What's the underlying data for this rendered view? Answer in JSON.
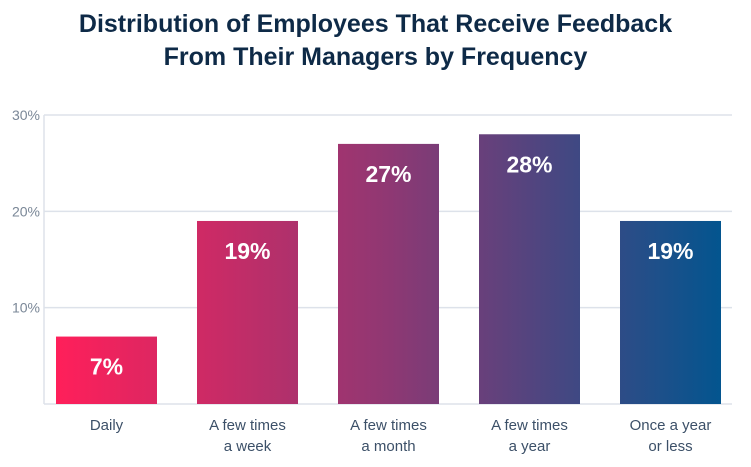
{
  "chart_data": {
    "type": "bar",
    "title_lines": [
      "Distribution of Employees That Receive Feedback",
      "From Their Managers by Frequency"
    ],
    "categories": [
      [
        "Daily"
      ],
      [
        "A few times",
        "a week"
      ],
      [
        "A few times",
        "a month"
      ],
      [
        "A few times",
        "a year"
      ],
      [
        "Once a year",
        "or less"
      ]
    ],
    "values": [
      7,
      19,
      27,
      28,
      19
    ],
    "data_labels": [
      "7%",
      "19%",
      "27%",
      "28%",
      "19%"
    ],
    "yticks": [
      10,
      20,
      30
    ],
    "ytick_labels": [
      "10%",
      "20%",
      "30%"
    ],
    "ylim": [
      0,
      30
    ],
    "grid": true,
    "colors": {
      "gradient_start": "#ff1f5a",
      "gradient_mid": "#8f3873",
      "gradient_end": "#03558f",
      "title": "#0e2a47",
      "label": "#3c5068",
      "tick": "#7a8797",
      "grid": "#dde2ea"
    }
  }
}
